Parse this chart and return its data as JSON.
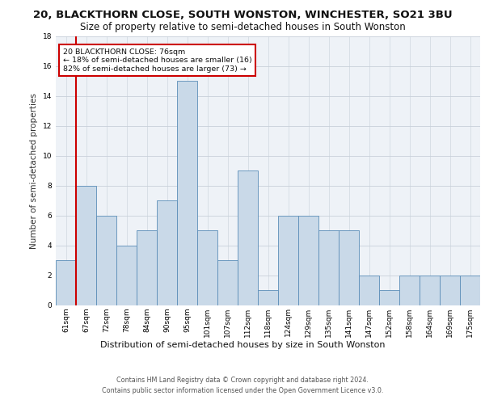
{
  "title1": "20, BLACKTHORN CLOSE, SOUTH WONSTON, WINCHESTER, SO21 3BU",
  "title2": "Size of property relative to semi-detached houses in South Wonston",
  "xlabel": "Distribution of semi-detached houses by size in South Wonston",
  "ylabel": "Number of semi-detached properties",
  "footnote": "Contains HM Land Registry data © Crown copyright and database right 2024.\nContains public sector information licensed under the Open Government Licence v3.0.",
  "bin_labels": [
    "61sqm",
    "67sqm",
    "72sqm",
    "78sqm",
    "84sqm",
    "90sqm",
    "95sqm",
    "101sqm",
    "107sqm",
    "112sqm",
    "118sqm",
    "124sqm",
    "129sqm",
    "135sqm",
    "141sqm",
    "147sqm",
    "152sqm",
    "158sqm",
    "164sqm",
    "169sqm",
    "175sqm"
  ],
  "bar_values": [
    3,
    8,
    6,
    4,
    5,
    7,
    15,
    5,
    3,
    9,
    1,
    6,
    6,
    5,
    5,
    2,
    1,
    2,
    2,
    2,
    2
  ],
  "bar_color": "#c9d9e8",
  "bar_edge_color": "#5b8db8",
  "highlight_color": "#cc0000",
  "property_bin_index": 1,
  "annotation_text": "20 BLACKTHORN CLOSE: 76sqm\n← 18% of semi-detached houses are smaller (16)\n82% of semi-detached houses are larger (73) →",
  "ylim": [
    0,
    18
  ],
  "yticks": [
    0,
    2,
    4,
    6,
    8,
    10,
    12,
    14,
    16,
    18
  ],
  "background_color": "#eef2f7",
  "grid_color": "#c8d0da",
  "title1_fontsize": 9.5,
  "title2_fontsize": 8.5,
  "xlabel_fontsize": 8.0,
  "ylabel_fontsize": 7.5,
  "tick_fontsize": 6.5,
  "footnote_fontsize": 5.8
}
